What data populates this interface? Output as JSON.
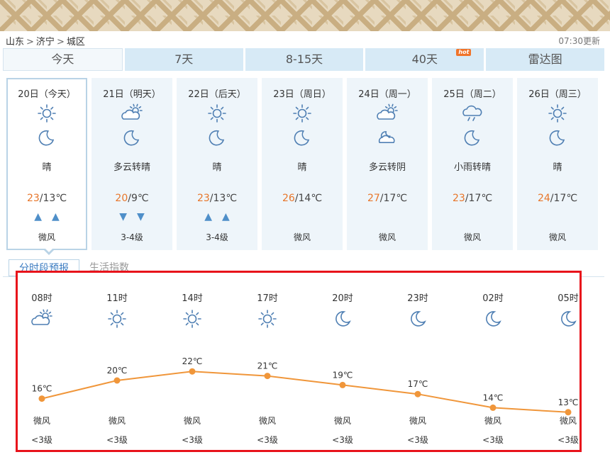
{
  "breadcrumb": [
    "山东",
    "济宁",
    "城区"
  ],
  "breadcrumb_sep": ">",
  "update_time": "07:30更新",
  "tabs": [
    {
      "label": "今天",
      "active": true
    },
    {
      "label": "7天"
    },
    {
      "label": "8-15天"
    },
    {
      "label": "40天",
      "badge": "hot"
    },
    {
      "label": "雷达图"
    }
  ],
  "days": [
    {
      "date": "20日（今天）",
      "day_icon": "sun-icon",
      "night_icon": "moon-icon",
      "cond": "晴",
      "hi": "23",
      "lo": "/13℃",
      "arrows": "▲▲",
      "wind": "微风",
      "active": true
    },
    {
      "date": "21日（明天）",
      "day_icon": "cloudy-sun-icon",
      "night_icon": "moon-icon",
      "cond": "多云转晴",
      "hi": "20",
      "lo": "/9℃",
      "arrows": "▼▼",
      "wind": "3-4级"
    },
    {
      "date": "22日（后天）",
      "day_icon": "sun-icon",
      "night_icon": "moon-icon",
      "cond": "晴",
      "hi": "23",
      "lo": "/13℃",
      "arrows": "▲▲",
      "wind": "3-4级"
    },
    {
      "date": "23日（周日）",
      "day_icon": "sun-icon",
      "night_icon": "moon-icon",
      "cond": "晴",
      "hi": "26",
      "lo": "/14℃",
      "arrows": "",
      "wind": "微风"
    },
    {
      "date": "24日（周一）",
      "day_icon": "cloudy-sun-icon",
      "night_icon": "cloudy-moon-icon",
      "cond": "多云转阴",
      "hi": "27",
      "lo": "/17℃",
      "arrows": "",
      "wind": "微风"
    },
    {
      "date": "25日（周二）",
      "day_icon": "rain-icon",
      "night_icon": "moon-icon",
      "cond": "小雨转晴",
      "hi": "23",
      "lo": "/17℃",
      "arrows": "",
      "wind": "微风"
    },
    {
      "date": "26日（周三）",
      "day_icon": "sun-icon",
      "night_icon": "moon-icon",
      "cond": "晴",
      "hi": "24",
      "lo": "/17℃",
      "arrows": "",
      "wind": "微风"
    }
  ],
  "subtabs": [
    {
      "label": "分时段预报",
      "active": true
    },
    {
      "label": "生活指数"
    }
  ],
  "colors": {
    "accent": "#e8762a",
    "line": "#f0963a",
    "highlight_box": "#e8131b",
    "tab_bg": "#d7eaf6"
  },
  "chart_data": {
    "type": "line",
    "x": [
      "08时",
      "11时",
      "14时",
      "17时",
      "20时",
      "23时",
      "02时",
      "05时"
    ],
    "icons": [
      "cloudy-sun-icon",
      "sun-icon",
      "sun-icon",
      "sun-icon",
      "moon-icon",
      "moon-icon",
      "moon-icon",
      "moon-icon"
    ],
    "values": [
      16,
      20,
      22,
      21,
      19,
      17,
      14,
      13
    ],
    "value_labels": [
      "16℃",
      "20℃",
      "22℃",
      "21℃",
      "19℃",
      "17℃",
      "14℃",
      "13℃"
    ],
    "wind": [
      "微风",
      "微风",
      "微风",
      "微风",
      "微风",
      "微风",
      "微风",
      "微风"
    ],
    "wind_level": [
      "<3级",
      "<3级",
      "<3级",
      "<3级",
      "<3级",
      "<3级",
      "<3级",
      "<3级"
    ],
    "ylim": [
      10,
      25
    ]
  }
}
